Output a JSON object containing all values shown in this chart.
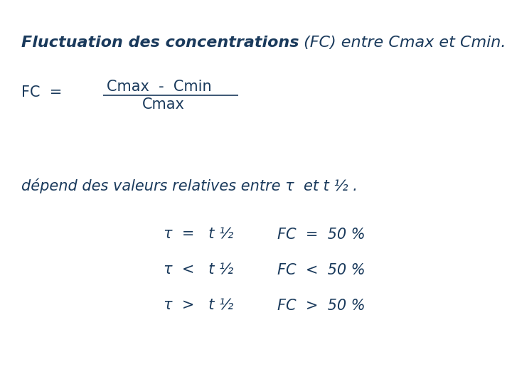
{
  "background_color": "#ffffff",
  "text_color": "#1a3a5c",
  "title_bold": "Fluctuation des concentrations",
  "title_normal": " (FC) entre Cmax et Cmin.",
  "fc_label": "FC  =",
  "numerator": "Cmax  -  Cmin",
  "denominator": "Cmax",
  "depend_text": "dépend des valeurs relatives entre τ  et t ½ .",
  "row1_left": "τ  =   t ½",
  "row1_right": "FC  =  50 %",
  "row2_left": "τ  <   t ½",
  "row2_right": "FC  <  50 %",
  "row3_left": "τ  >   t ½",
  "row3_right": "FC  >  50 %",
  "font_size_title": 16,
  "font_size_body": 15,
  "font_size_rows": 15
}
